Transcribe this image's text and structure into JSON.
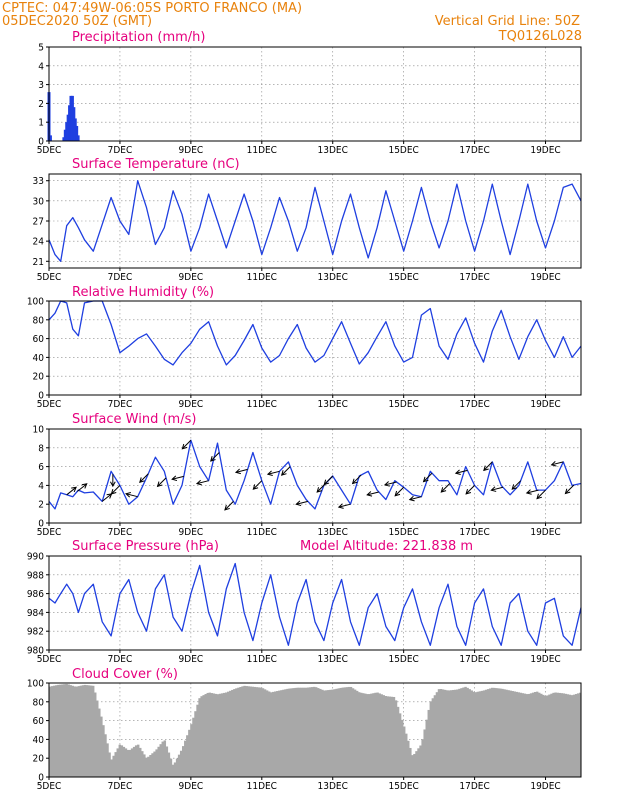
{
  "header": {
    "line1": "CPTEC:   047:49W-06:05S   PORTO FRANCO (MA)",
    "line2": "05DEC2020 50Z (GMT)",
    "grid_note": "Vertical Grid Line: 50Z",
    "code": "TQ0126L028"
  },
  "colors": {
    "header": "#e8820c",
    "title": "#e6007e",
    "series": "#1f3fe0",
    "cloud": "#a8a8a8",
    "arrow": "#000000"
  },
  "x_axis": {
    "start_day": 5,
    "end_day": 20,
    "tick_labels": [
      "5DEC",
      "7DEC",
      "9DEC",
      "11DEC",
      "13DEC",
      "15DEC",
      "17DEC",
      "19DEC"
    ],
    "tick_days": [
      5,
      7,
      9,
      11,
      13,
      15,
      17,
      19
    ]
  },
  "chart_data": [
    {
      "id": "precip",
      "type": "bar",
      "title": "Precipitation (mm/h)",
      "ylim": [
        0,
        5
      ],
      "yticks": [
        0,
        1,
        2,
        3,
        4,
        5
      ],
      "x": [
        5.0,
        5.04,
        5.42,
        5.46,
        5.5,
        5.54,
        5.58,
        5.62,
        5.66,
        5.7,
        5.74,
        5.78,
        5.82
      ],
      "values": [
        2.6,
        0.3,
        0.2,
        0.6,
        1.0,
        1.4,
        1.9,
        2.4,
        2.4,
        1.8,
        1.2,
        0.8,
        0.3
      ]
    },
    {
      "id": "temp",
      "type": "line",
      "title": "Surface Temperature (nC)",
      "ylim": [
        20,
        34
      ],
      "yticks": [
        21,
        24,
        27,
        30,
        33
      ],
      "x": [
        5.0,
        5.17,
        5.33,
        5.5,
        5.67,
        5.83,
        6.0,
        6.25,
        6.5,
        6.75,
        7.0,
        7.25,
        7.5,
        7.75,
        8.0,
        8.25,
        8.5,
        8.75,
        9.0,
        9.25,
        9.5,
        9.75,
        10.0,
        10.25,
        10.5,
        10.75,
        11.0,
        11.25,
        11.5,
        11.75,
        12.0,
        12.25,
        12.5,
        12.75,
        13.0,
        13.25,
        13.5,
        13.75,
        14.0,
        14.25,
        14.5,
        14.75,
        15.0,
        15.25,
        15.5,
        15.75,
        16.0,
        16.25,
        16.5,
        16.75,
        17.0,
        17.25,
        17.5,
        17.75,
        18.0,
        18.25,
        18.5,
        18.75,
        19.0,
        19.25,
        19.5,
        19.75,
        20.0
      ],
      "values": [
        24.2,
        22.0,
        21.0,
        26.3,
        27.5,
        26.0,
        24.2,
        22.5,
        26.5,
        30.5,
        27.0,
        25.0,
        33.0,
        29.0,
        23.5,
        26.0,
        31.5,
        28.0,
        22.5,
        26.0,
        31.0,
        27.0,
        23.0,
        27.0,
        31.0,
        27.0,
        22.0,
        26.0,
        30.5,
        27.0,
        22.5,
        26.0,
        32.0,
        27.0,
        22.0,
        27.0,
        31.0,
        26.0,
        21.5,
        26.0,
        31.5,
        27.0,
        22.5,
        27.0,
        32.0,
        27.0,
        23.0,
        27.0,
        32.5,
        27.0,
        22.5,
        27.0,
        32.5,
        27.0,
        22.0,
        27.0,
        32.5,
        27.0,
        23.0,
        27.0,
        32.0,
        32.5,
        30.0
      ]
    },
    {
      "id": "rh",
      "type": "line",
      "title": "Relative Humidity (%)",
      "ylim": [
        0,
        100
      ],
      "yticks": [
        0,
        20,
        40,
        60,
        80,
        100
      ],
      "x": [
        5.0,
        5.17,
        5.33,
        5.5,
        5.67,
        5.83,
        6.0,
        6.25,
        6.5,
        6.75,
        7.0,
        7.25,
        7.5,
        7.75,
        8.0,
        8.25,
        8.5,
        8.75,
        9.0,
        9.25,
        9.5,
        9.75,
        10.0,
        10.25,
        10.5,
        10.75,
        11.0,
        11.25,
        11.5,
        11.75,
        12.0,
        12.25,
        12.5,
        12.75,
        13.0,
        13.25,
        13.5,
        13.75,
        14.0,
        14.25,
        14.5,
        14.75,
        15.0,
        15.25,
        15.5,
        15.75,
        16.0,
        16.25,
        16.5,
        16.75,
        17.0,
        17.25,
        17.5,
        17.75,
        18.0,
        18.25,
        18.5,
        18.75,
        19.0,
        19.25,
        19.5,
        19.75,
        20.0
      ],
      "values": [
        80,
        87,
        100,
        98,
        70,
        63,
        98,
        100,
        100,
        75,
        45,
        52,
        60,
        65,
        52,
        38,
        32,
        45,
        55,
        70,
        78,
        52,
        32,
        42,
        58,
        75,
        50,
        35,
        42,
        60,
        75,
        50,
        35,
        42,
        60,
        78,
        55,
        33,
        45,
        62,
        78,
        52,
        35,
        40,
        85,
        92,
        52,
        38,
        65,
        82,
        55,
        35,
        68,
        90,
        62,
        38,
        62,
        80,
        58,
        40,
        62,
        40,
        52
      ]
    },
    {
      "id": "wind",
      "type": "line",
      "title": "Surface Wind (m/s)",
      "ylim": [
        0,
        10
      ],
      "yticks": [
        0,
        2,
        4,
        6,
        8,
        10
      ],
      "x": [
        5.0,
        5.17,
        5.33,
        5.5,
        5.67,
        5.83,
        6.0,
        6.25,
        6.5,
        6.75,
        7.0,
        7.25,
        7.5,
        7.75,
        8.0,
        8.25,
        8.5,
        8.75,
        9.0,
        9.25,
        9.5,
        9.75,
        10.0,
        10.25,
        10.5,
        10.75,
        11.0,
        11.25,
        11.5,
        11.75,
        12.0,
        12.25,
        12.5,
        12.75,
        13.0,
        13.25,
        13.5,
        13.75,
        14.0,
        14.25,
        14.5,
        14.75,
        15.0,
        15.25,
        15.5,
        15.75,
        16.0,
        16.25,
        16.5,
        16.75,
        17.0,
        17.25,
        17.5,
        17.75,
        18.0,
        18.25,
        18.5,
        18.75,
        19.0,
        19.25,
        19.5,
        19.75,
        20.0
      ],
      "values": [
        2.3,
        1.5,
        3.2,
        3.0,
        2.8,
        3.5,
        3.2,
        3.3,
        2.3,
        5.5,
        4.0,
        2.0,
        2.8,
        4.8,
        7.0,
        5.5,
        2.0,
        4.0,
        8.8,
        6.0,
        4.5,
        8.5,
        3.5,
        2.0,
        4.5,
        7.5,
        4.5,
        2.0,
        5.5,
        6.5,
        4.0,
        2.5,
        1.5,
        4.0,
        5.0,
        3.5,
        2.0,
        5.0,
        5.5,
        3.5,
        2.5,
        4.5,
        3.8,
        3.0,
        2.8,
        5.5,
        4.5,
        4.5,
        3.0,
        6.0,
        4.0,
        3.0,
        6.5,
        4.0,
        3.0,
        4.0,
        6.5,
        3.5,
        3.5,
        4.5,
        6.5,
        4.0,
        4.2
      ]
    },
    {
      "id": "pres",
      "type": "line",
      "title": "Surface Pressure (hPa)",
      "annotation": "Model Altitude: 221.838 m",
      "ylim": [
        980,
        990
      ],
      "yticks": [
        980,
        982,
        984,
        986,
        988,
        990
      ],
      "x": [
        5.0,
        5.17,
        5.33,
        5.5,
        5.67,
        5.83,
        6.0,
        6.25,
        6.5,
        6.75,
        7.0,
        7.25,
        7.5,
        7.75,
        8.0,
        8.25,
        8.5,
        8.75,
        9.0,
        9.25,
        9.5,
        9.75,
        10.0,
        10.25,
        10.5,
        10.75,
        11.0,
        11.25,
        11.5,
        11.75,
        12.0,
        12.25,
        12.5,
        12.75,
        13.0,
        13.25,
        13.5,
        13.75,
        14.0,
        14.25,
        14.5,
        14.75,
        15.0,
        15.25,
        15.5,
        15.75,
        16.0,
        16.25,
        16.5,
        16.75,
        17.0,
        17.25,
        17.5,
        17.75,
        18.0,
        18.25,
        18.5,
        18.75,
        19.0,
        19.25,
        19.5,
        19.75,
        20.0
      ],
      "values": [
        985.5,
        985.0,
        986.0,
        987.0,
        986.0,
        984.0,
        986.0,
        987.0,
        983.0,
        981.5,
        986.0,
        987.5,
        984.0,
        982.0,
        986.5,
        988.0,
        983.5,
        982.0,
        986.0,
        989.0,
        984.0,
        981.5,
        986.5,
        989.2,
        984.0,
        981.0,
        985.0,
        988.0,
        983.5,
        980.5,
        985.0,
        987.5,
        983.0,
        981.0,
        985.0,
        987.5,
        983.0,
        980.5,
        984.5,
        986.0,
        982.5,
        981.0,
        984.5,
        986.5,
        983.0,
        980.5,
        984.5,
        987.0,
        982.5,
        980.5,
        985.0,
        986.5,
        982.5,
        980.5,
        985.0,
        986.0,
        982.0,
        980.5,
        985.0,
        985.5,
        981.5,
        980.5,
        984.5
      ]
    },
    {
      "id": "cloud",
      "type": "area",
      "title": "Cloud Cover (%)",
      "ylim": [
        0,
        100
      ],
      "yticks": [
        0,
        20,
        40,
        60,
        80,
        100
      ],
      "x": [
        5.0,
        5.25,
        5.5,
        5.75,
        6.0,
        6.25,
        6.5,
        6.75,
        7.0,
        7.25,
        7.5,
        7.75,
        8.0,
        8.25,
        8.5,
        8.75,
        9.0,
        9.25,
        9.5,
        9.75,
        10.0,
        10.25,
        10.5,
        10.75,
        11.0,
        11.25,
        11.5,
        11.75,
        12.0,
        12.25,
        12.5,
        12.75,
        13.0,
        13.25,
        13.5,
        13.75,
        14.0,
        14.25,
        14.5,
        14.75,
        15.0,
        15.25,
        15.5,
        15.75,
        16.0,
        16.25,
        16.5,
        16.75,
        17.0,
        17.25,
        17.5,
        17.75,
        18.0,
        18.25,
        18.5,
        18.75,
        19.0,
        19.25,
        19.5,
        19.75,
        20.0
      ],
      "values": [
        96,
        98,
        99,
        96,
        98,
        97,
        60,
        18,
        35,
        28,
        35,
        20,
        28,
        40,
        12,
        30,
        55,
        85,
        90,
        88,
        90,
        94,
        97,
        96,
        95,
        90,
        92,
        94,
        95,
        95,
        96,
        92,
        93,
        95,
        96,
        90,
        88,
        90,
        86,
        85,
        55,
        22,
        35,
        80,
        94,
        92,
        93,
        96,
        90,
        92,
        95,
        94,
        92,
        90,
        88,
        91,
        86,
        90,
        89,
        87,
        90
      ]
    }
  ],
  "wind_arrows": {
    "x": [
      5.5,
      5.8,
      6.5,
      6.8,
      7.0,
      7.5,
      7.8,
      8.3,
      8.8,
      9.0,
      9.5,
      9.8,
      10.2,
      10.6,
      11.0,
      11.5,
      11.8,
      12.3,
      12.8,
      13.0,
      13.5,
      13.8,
      14.3,
      14.8,
      15.0,
      15.5,
      15.8,
      16.3,
      16.8,
      17.0,
      17.5,
      17.8,
      18.3,
      18.8,
      19.0,
      19.5,
      19.8
    ],
    "u": [
      1,
      1,
      1,
      0,
      -1,
      -2,
      -1,
      -1,
      -2,
      -1,
      -2,
      -1,
      -1,
      -2,
      -1,
      -2,
      -1,
      -2,
      -1,
      -1,
      -2,
      -1,
      -2,
      -2,
      -1,
      -2,
      -1,
      -1,
      -2,
      -1,
      -1,
      -2,
      -1,
      -2,
      -1,
      -2,
      -1
    ],
    "v": [
      0.8,
      0.8,
      0.8,
      -1,
      -1,
      0.5,
      -1,
      -1,
      -0.5,
      -1,
      -0.5,
      -1,
      -1,
      -0.5,
      -1,
      -0.5,
      -1,
      -0.5,
      -1,
      -1,
      -0.5,
      -1,
      -0.5,
      -0.5,
      -1,
      -0.5,
      -1,
      -1,
      -0.5,
      -1,
      -1,
      -0.5,
      -1,
      -0.5,
      -1,
      -0.5,
      -1
    ]
  }
}
